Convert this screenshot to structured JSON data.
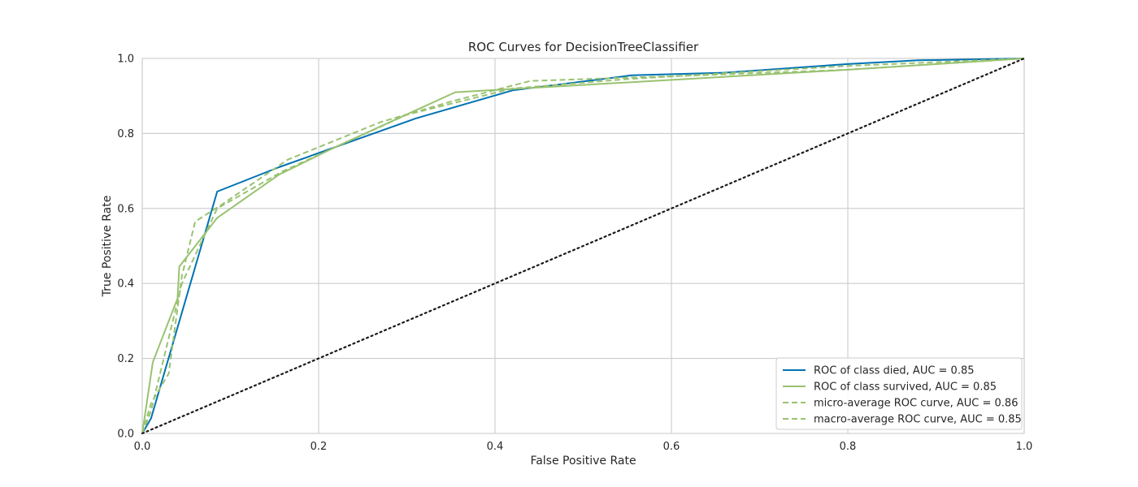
{
  "chart_data": {
    "type": "line",
    "title": "ROC Curves for DecisionTreeClassifier",
    "xlabel": "False Positive Rate",
    "ylabel": "True Positive Rate",
    "xlim": [
      0.0,
      1.0
    ],
    "ylim": [
      0.0,
      1.0
    ],
    "x_ticks": [
      "0.0",
      "0.2",
      "0.4",
      "0.6",
      "0.8",
      "1.0"
    ],
    "y_ticks": [
      "0.0",
      "0.2",
      "0.4",
      "0.6",
      "0.8",
      "1.0"
    ],
    "grid": true,
    "legend_position": "lower-right",
    "series": [
      {
        "name": "ROC of class died, AUC = 0.85",
        "color": "#0072b2",
        "style": "solid",
        "points": [
          [
            0.0,
            0.0
          ],
          [
            0.01,
            0.04
          ],
          [
            0.085,
            0.645
          ],
          [
            0.155,
            0.71
          ],
          [
            0.31,
            0.84
          ],
          [
            0.42,
            0.915
          ],
          [
            0.555,
            0.955
          ],
          [
            0.66,
            0.962
          ],
          [
            0.8,
            0.985
          ],
          [
            0.88,
            0.995
          ],
          [
            1.0,
            1.0
          ]
        ]
      },
      {
        "name": "ROC of class survived, AUC = 0.85",
        "color": "#99c270",
        "style": "solid",
        "points": [
          [
            0.0,
            0.0
          ],
          [
            0.012,
            0.19
          ],
          [
            0.04,
            0.36
          ],
          [
            0.042,
            0.445
          ],
          [
            0.085,
            0.575
          ],
          [
            0.155,
            0.69
          ],
          [
            0.22,
            0.765
          ],
          [
            0.355,
            0.91
          ],
          [
            0.43,
            0.92
          ],
          [
            0.8,
            0.97
          ],
          [
            1.0,
            1.0
          ]
        ]
      },
      {
        "name": "micro-average ROC curve, AUC = 0.86",
        "color": "#99c270",
        "style": "dashed",
        "points": [
          [
            0.0,
            0.0
          ],
          [
            0.01,
            0.08
          ],
          [
            0.03,
            0.16
          ],
          [
            0.045,
            0.42
          ],
          [
            0.06,
            0.565
          ],
          [
            0.09,
            0.61
          ],
          [
            0.165,
            0.73
          ],
          [
            0.27,
            0.83
          ],
          [
            0.35,
            0.885
          ],
          [
            0.44,
            0.94
          ],
          [
            0.63,
            0.955
          ],
          [
            0.8,
            0.97
          ],
          [
            1.0,
            1.0
          ]
        ]
      },
      {
        "name": "macro-average ROC curve, AUC = 0.85",
        "color": "#99c270",
        "style": "dashed",
        "points": [
          [
            0.0,
            0.0
          ],
          [
            0.01,
            0.06
          ],
          [
            0.045,
            0.4
          ],
          [
            0.085,
            0.6
          ],
          [
            0.16,
            0.7
          ],
          [
            0.3,
            0.85
          ],
          [
            0.42,
            0.92
          ],
          [
            0.55,
            0.945
          ],
          [
            0.8,
            0.98
          ],
          [
            1.0,
            1.0
          ]
        ]
      },
      {
        "name": "",
        "color": "#1a1a1a",
        "style": "dotted",
        "points": [
          [
            0.0,
            0.0
          ],
          [
            1.0,
            1.0
          ]
        ]
      }
    ]
  }
}
